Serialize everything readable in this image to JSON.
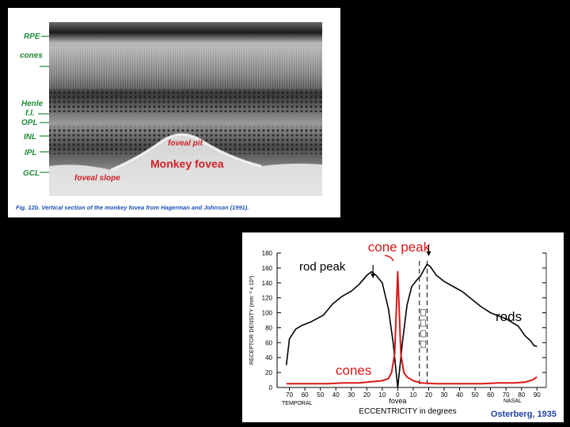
{
  "top_figure": {
    "labels": {
      "rpe": "RPE",
      "cones": "cones",
      "henle": "Henle",
      "fl": "f.l.",
      "opl": "OPL",
      "inl": "INL",
      "ipl": "IPL",
      "gcl": "GCL"
    },
    "foveal_pit": "foveal pit",
    "monkey_fovea": "Monkey fovea",
    "foveal_slope": "foveal slope",
    "caption": "Fig. 12b. Vertical section of the monkey fovea from Hagerman and Johnson (1991).",
    "colors": {
      "annotation_red": "#d0202a",
      "label_blue": "#1e50b4",
      "label_green": "#1f8a3a"
    }
  },
  "chart_data": {
    "type": "line",
    "ylabel": "RECEPTOR DENSITY (mm⁻² x 10³)",
    "xlabel": "ECCENTRICITY in degrees",
    "x_side_left": "TEMPORAL",
    "x_side_right": "NASAL",
    "fovea_label": "fovea",
    "source": "Osterberg, 1935",
    "ylim": [
      0,
      180
    ],
    "yticks": [
      0,
      20,
      40,
      60,
      80,
      100,
      120,
      140,
      160,
      180
    ],
    "xlim": [
      -78,
      96
    ],
    "xticks": [
      {
        "x": -70,
        "label": "70"
      },
      {
        "x": -60,
        "label": "60"
      },
      {
        "x": -50,
        "label": "50"
      },
      {
        "x": -40,
        "label": "40"
      },
      {
        "x": -30,
        "label": "30"
      },
      {
        "x": -20,
        "label": "20"
      },
      {
        "x": -10,
        "label": "10"
      },
      {
        "x": 0,
        "label": "0"
      },
      {
        "x": 10,
        "label": "10"
      },
      {
        "x": 20,
        "label": "20"
      },
      {
        "x": 30,
        "label": "30"
      },
      {
        "x": 40,
        "label": "40"
      },
      {
        "x": 50,
        "label": "50"
      },
      {
        "x": 60,
        "label": "60"
      },
      {
        "x": 70,
        "label": "70"
      },
      {
        "x": 80,
        "label": "80"
      },
      {
        "x": 90,
        "label": "90"
      }
    ],
    "annotations": {
      "cone_peak": "cone peak",
      "rod_peak": "rod peak",
      "rods": "rods",
      "cones": "cones"
    },
    "series": [
      {
        "name": "rods",
        "color": "#000000",
        "x": [
          -72,
          -70,
          -66,
          -62,
          -56,
          -48,
          -42,
          -36,
          -30,
          -25,
          -20,
          -17,
          -14,
          -10,
          -6,
          -3,
          0,
          3,
          6,
          9,
          12,
          15,
          17,
          19,
          21,
          25,
          30,
          36,
          42,
          48,
          54,
          60,
          66,
          70,
          74,
          78,
          82,
          86,
          88,
          90
        ],
        "values": [
          30,
          65,
          78,
          83,
          88,
          97,
          112,
          122,
          129,
          138,
          150,
          155,
          150,
          140,
          105,
          60,
          0,
          60,
          110,
          135,
          143,
          150,
          158,
          165,
          162,
          150,
          142,
          135,
          128,
          118,
          108,
          100,
          95,
          92,
          87,
          82,
          70,
          62,
          56,
          55
        ]
      },
      {
        "name": "cones",
        "color": "#d81818",
        "x": [
          -72,
          -65,
          -55,
          -45,
          -35,
          -25,
          -15,
          -10,
          -6,
          -4,
          -2,
          -1,
          0,
          1,
          2,
          4,
          6,
          10,
          15,
          25,
          35,
          45,
          55,
          65,
          75,
          82,
          87,
          90
        ],
        "values": [
          5,
          5,
          5,
          5,
          6,
          6,
          8,
          9,
          12,
          20,
          45,
          100,
          155,
          100,
          45,
          20,
          14,
          9,
          6,
          5,
          5,
          5,
          5,
          6,
          6,
          7,
          10,
          14
        ]
      }
    ]
  }
}
